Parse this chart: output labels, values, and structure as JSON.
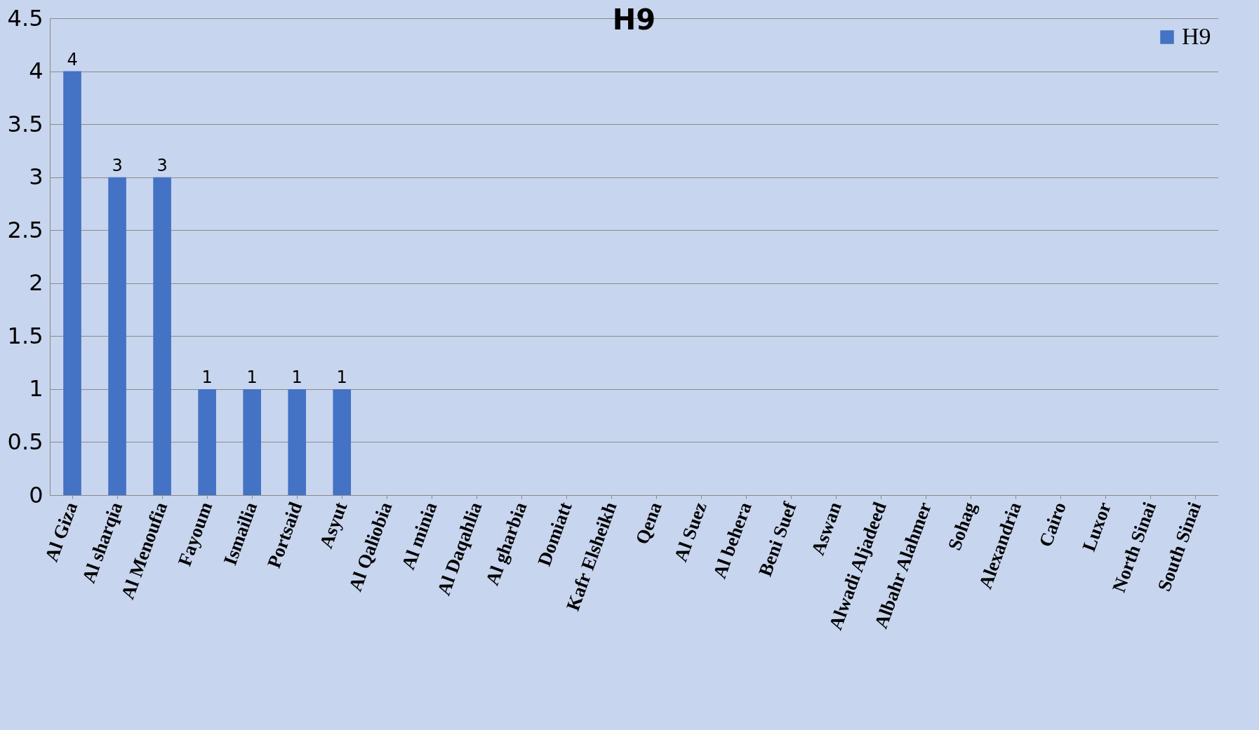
{
  "chart_data": {
    "type": "bar",
    "title": "H9",
    "categories": [
      "Al Giza",
      "Al sharqia",
      "Al Menoufia",
      "Fayoum",
      "Ismailia",
      "Portsaid",
      "Asyut",
      "Al Qaliobia",
      "Al minia",
      "Al Daqahlia",
      "Al gharbia",
      "Domiatt",
      "Kafr Elsheikh",
      "Qena",
      "Al Suez",
      "Al behera",
      "Beni Suef",
      "Aswan",
      "Alwadi Aljadeed",
      "Albahr Alahmer",
      "Sohag",
      "Alexandria",
      "Cairo",
      "Luxor",
      "North Sinai",
      "South Sinai"
    ],
    "series": [
      {
        "name": "H9",
        "color": "#4472c4",
        "values": [
          4,
          3,
          3,
          1,
          1,
          1,
          1,
          0,
          0,
          0,
          0,
          0,
          0,
          0,
          0,
          0,
          0,
          0,
          0,
          0,
          0,
          0,
          0,
          0,
          0,
          0
        ]
      }
    ],
    "value_labels": [
      "4",
      "3",
      "3",
      "1",
      "1",
      "1",
      "1",
      null,
      null,
      null,
      null,
      null,
      null,
      null,
      null,
      null,
      null,
      null,
      null,
      null,
      null,
      null,
      null,
      null,
      null,
      null
    ],
    "ylim": [
      0,
      4.5
    ],
    "yticks": [
      0,
      0.5,
      1,
      1.5,
      2,
      2.5,
      3,
      3.5,
      4,
      4.5
    ],
    "grid": "y",
    "legend": "top right"
  }
}
